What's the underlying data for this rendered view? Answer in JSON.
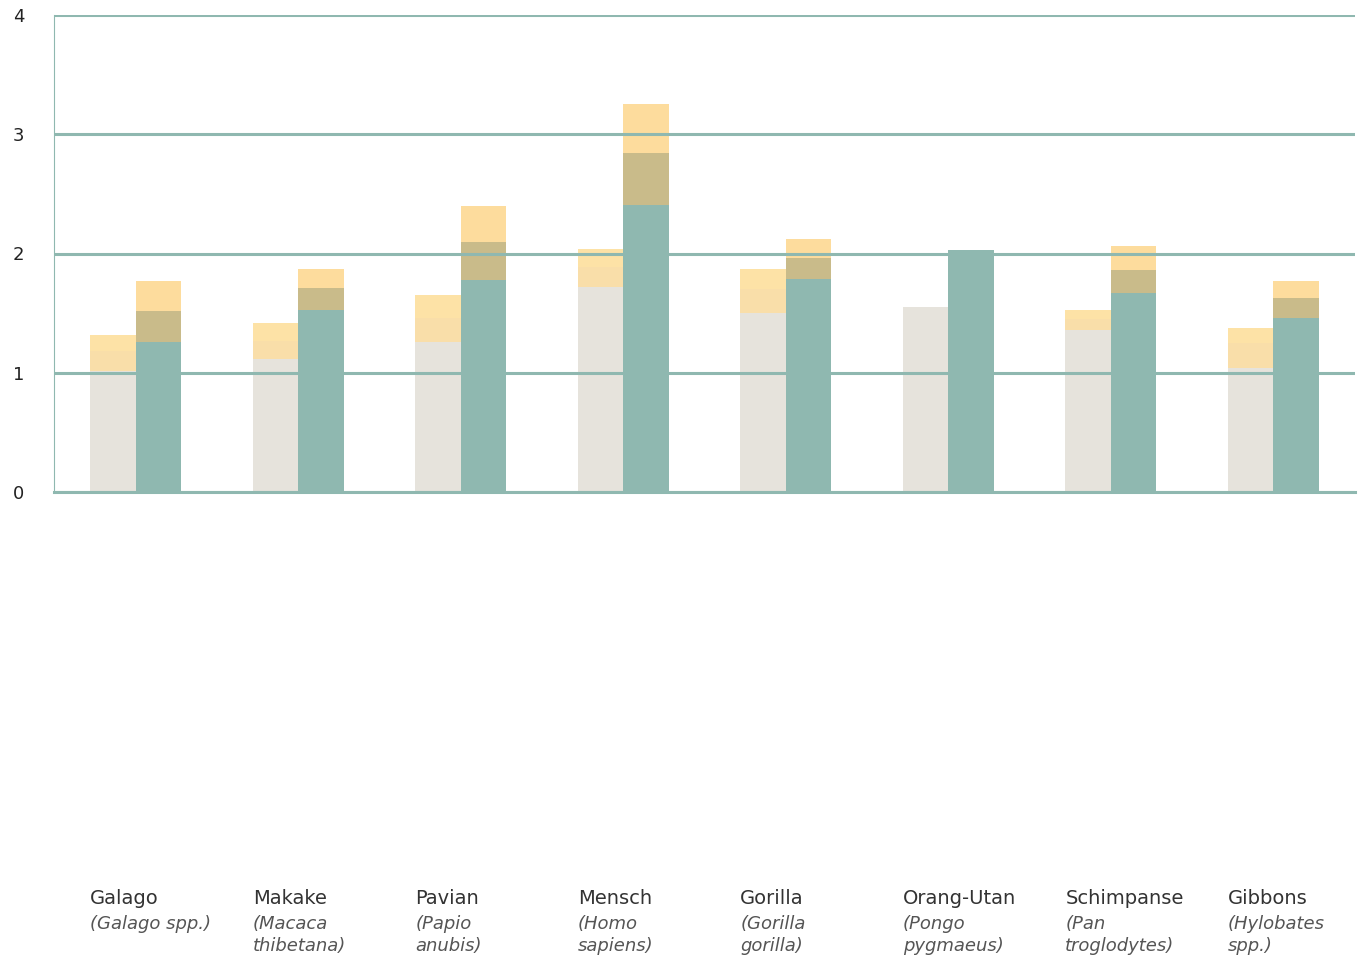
{
  "chart_data": {
    "type": "bar",
    "stacked": true,
    "grid": true,
    "categories": [
      "Galago",
      "Makake",
      "Pavian",
      "Mensch",
      "Gorilla",
      "Orang-Utan",
      "Schimpanse",
      "Gibbons"
    ],
    "scientific_names": [
      "(Galago spp.)",
      "(Macaca thibetana)",
      "(Papio anubis)",
      "(Homo sapiens)",
      "(Gorilla gorilla)",
      "(Pongo pygmaeus)",
      "(Pan troglodytes)",
      "(Hylobates spp.)"
    ],
    "groups": [
      {
        "series": [
          {
            "color": "#e6e3dc",
            "values": [
              1.02,
              1.12,
              1.26,
              1.72,
              1.5,
              1.55,
              1.36,
              1.04
            ]
          },
          {
            "color": "#f9dea9",
            "values": [
              0.16,
              0.15,
              0.2,
              0.17,
              0.2,
              null,
              0.09,
              0.21
            ]
          },
          {
            "color": "#fde2a6",
            "values": [
              0.14,
              0.15,
              0.19,
              0.15,
              0.17,
              null,
              0.08,
              0.13
            ]
          }
        ]
      },
      {
        "series": [
          {
            "color": "#8fb8b0",
            "values": [
              1.26,
              1.53,
              1.78,
              2.41,
              1.79,
              2.03,
              1.67,
              1.46
            ]
          },
          {
            "color": "#c9bb8a",
            "values": [
              0.26,
              0.18,
              0.32,
              0.43,
              0.17,
              null,
              0.19,
              0.17
            ]
          },
          {
            "color": "#fddc9d",
            "values": [
              0.25,
              0.16,
              0.3,
              0.41,
              0.16,
              null,
              0.2,
              0.14
            ]
          }
        ]
      }
    ],
    "ylim": [
      0,
      4
    ],
    "yticks": [
      0,
      1,
      2,
      3,
      4
    ]
  }
}
